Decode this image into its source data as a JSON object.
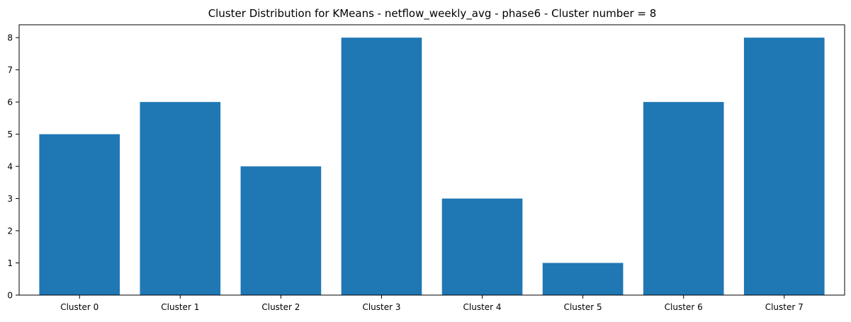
{
  "chart_data": {
    "type": "bar",
    "title": "Cluster Distribution for KMeans - netflow_weekly_avg - phase6 - Cluster number = 8",
    "xlabel": "",
    "ylabel": "",
    "categories": [
      "Cluster 0",
      "Cluster 1",
      "Cluster 2",
      "Cluster 3",
      "Cluster 4",
      "Cluster 5",
      "Cluster 6",
      "Cluster 7"
    ],
    "values": [
      5,
      6,
      4,
      8,
      3,
      1,
      6,
      8
    ],
    "ylim": [
      0,
      8.4
    ],
    "yticks": [
      "0",
      "1",
      "2",
      "3",
      "4",
      "5",
      "6",
      "7",
      "8"
    ],
    "grid": false,
    "legend": "none",
    "bar_color": "#1f77b4"
  }
}
